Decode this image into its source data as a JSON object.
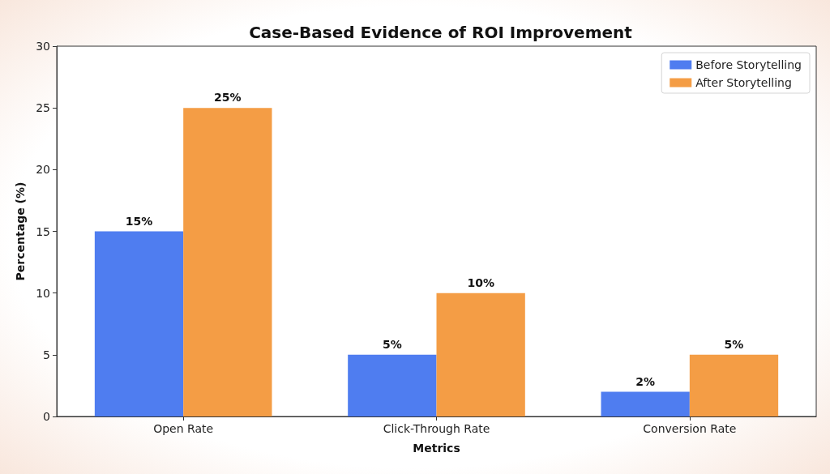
{
  "chart_data": {
    "type": "bar",
    "title": "Case-Based Evidence of ROI Improvement",
    "xlabel": "Metrics",
    "ylabel": "Percentage (%)",
    "categories": [
      "Open Rate",
      "Click-Through Rate",
      "Conversion Rate"
    ],
    "series": [
      {
        "name": "Before Storytelling",
        "color": "#4f7df0",
        "values": [
          15,
          5,
          2
        ],
        "value_labels": [
          "15%",
          "5%",
          "2%"
        ]
      },
      {
        "name": "After Storytelling",
        "color": "#f49d45",
        "values": [
          25,
          10,
          5
        ],
        "value_labels": [
          "25%",
          "10%",
          "5%"
        ]
      }
    ],
    "ylim": [
      0,
      30
    ],
    "yticks": [
      0,
      5,
      10,
      15,
      20,
      25,
      30
    ],
    "legend": "top right"
  }
}
